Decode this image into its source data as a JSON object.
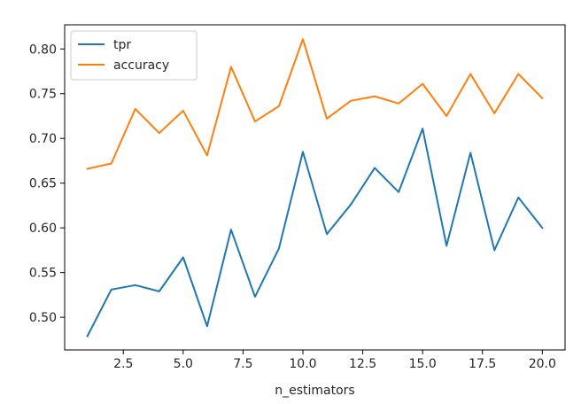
{
  "chart_data": {
    "type": "line",
    "title": "",
    "xlabel": "n_estimators",
    "ylabel": "",
    "x": [
      1,
      2,
      3,
      4,
      5,
      6,
      7,
      8,
      9,
      10,
      11,
      12,
      13,
      14,
      15,
      16,
      17,
      18,
      19,
      20
    ],
    "xlim": [
      0.05,
      20.95
    ],
    "ylim": [
      0.4635,
      0.827
    ],
    "xticks": [
      2.5,
      5.0,
      7.5,
      10.0,
      12.5,
      15.0,
      17.5,
      20.0
    ],
    "xtick_labels": [
      "2.5",
      "5.0",
      "7.5",
      "10.0",
      "12.5",
      "15.0",
      "17.5",
      "20.0"
    ],
    "yticks": [
      0.5,
      0.55,
      0.6,
      0.65,
      0.7,
      0.75,
      0.8
    ],
    "ytick_labels": [
      "0.50",
      "0.55",
      "0.60",
      "0.65",
      "0.70",
      "0.75",
      "0.80"
    ],
    "grid": false,
    "legend_position": "top-left",
    "series": [
      {
        "name": "tpr",
        "color": "#1f77b4",
        "values": [
          0.479,
          0.531,
          0.536,
          0.529,
          0.567,
          0.49,
          0.598,
          0.523,
          0.577,
          0.685,
          0.593,
          0.626,
          0.667,
          0.64,
          0.711,
          0.58,
          0.684,
          0.575,
          0.634,
          0.6
        ]
      },
      {
        "name": "accuracy",
        "color": "#ff7f0e",
        "values": [
          0.666,
          0.672,
          0.733,
          0.706,
          0.731,
          0.681,
          0.78,
          0.719,
          0.736,
          0.811,
          0.722,
          0.742,
          0.747,
          0.739,
          0.761,
          0.725,
          0.772,
          0.728,
          0.772,
          0.745
        ]
      }
    ]
  }
}
